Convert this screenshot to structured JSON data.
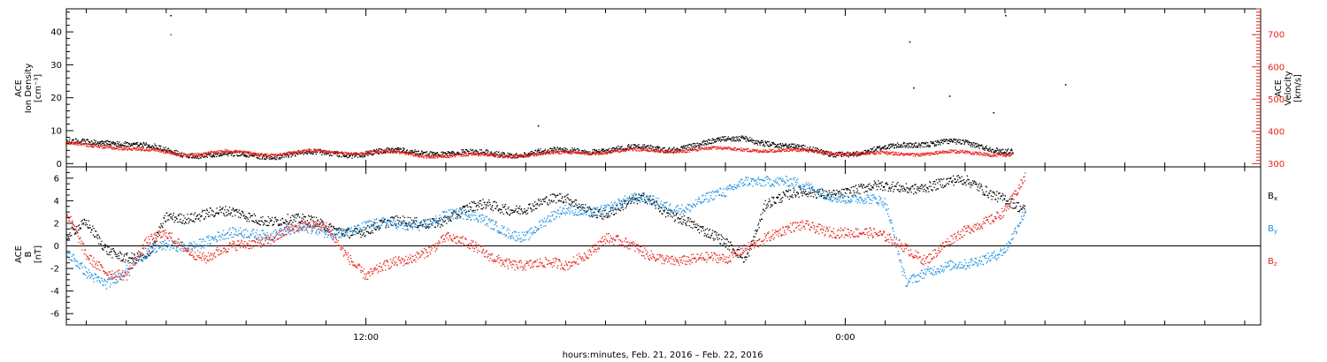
{
  "xlabel": "hours:minutes, Feb. 21, 2016 – Feb. 22, 2016",
  "x_ticks": [
    {
      "label": "12:00",
      "hour": 12
    },
    {
      "label": "0:00",
      "hour": 24
    }
  ],
  "colors": {
    "black": "#000000",
    "red": "#e8221c",
    "blue": "#1b8fe3"
  },
  "chart_data": [
    {
      "type": "scatter",
      "name": "top-panel",
      "xlim_hours": [
        4.5,
        34.4
      ],
      "left_axis": {
        "label_lines": [
          "ACE",
          "Ion Density",
          "[cm⁻³]"
        ],
        "ylim": [
          -1,
          47
        ],
        "ticks": [
          0,
          10,
          20,
          30,
          40
        ]
      },
      "right_axis": {
        "label_lines": [
          "ACE",
          "Velocity",
          "[km/s]"
        ],
        "ylim": [
          290,
          780
        ],
        "ticks": [
          300,
          400,
          500,
          600,
          700
        ]
      },
      "series": [
        {
          "name": "",
          "axis": "left",
          "color": "black",
          "hours": [
            4.5,
            5.5,
            6.5,
            7.5,
            8.5,
            9.5,
            10.5,
            11.5,
            12.5,
            13.5,
            14.5,
            15.5,
            16.5,
            17.5,
            18.5,
            19.5,
            20.5,
            21.5,
            22.5,
            23.5,
            24.5,
            25.5,
            26.5,
            27.5,
            28.2
          ],
          "values": [
            6,
            7,
            5,
            3,
            2.5,
            2.5,
            3,
            3,
            3.5,
            3.5,
            3,
            3,
            3.5,
            4,
            4.5,
            4.5,
            6,
            8,
            5,
            3.5,
            3,
            6,
            6.5,
            5,
            4
          ],
          "outliers": [
            [
              7.1,
              45
            ],
            [
              16.3,
              11.5
            ],
            [
              25.6,
              37
            ],
            [
              25.7,
              23
            ],
            [
              26.6,
              20.5
            ],
            [
              27.7,
              15.5
            ],
            [
              28.0,
              45
            ],
            [
              29.5,
              24
            ]
          ]
        },
        {
          "name": "",
          "axis": "right",
          "color": "red",
          "hours": [
            4.5,
            5.5,
            6.5,
            7.5,
            8.5,
            9.5,
            10.5,
            11.5,
            12.5,
            13.5,
            14.5,
            15.5,
            16.5,
            17.5,
            18.5,
            19.5,
            20.5,
            21.5,
            22.5,
            23.5,
            24.5,
            25.5,
            26.5,
            27.5,
            28.2
          ],
          "values": [
            360,
            355,
            340,
            330,
            335,
            330,
            335,
            335,
            335,
            325,
            325,
            325,
            330,
            335,
            340,
            340,
            345,
            345,
            340,
            335,
            330,
            330,
            335,
            330,
            330
          ],
          "outliers": [
            [
              7.1,
              780
            ],
            [
              7.1,
              700
            ]
          ]
        }
      ]
    },
    {
      "type": "scatter",
      "name": "bottom-panel",
      "xlim_hours": [
        4.5,
        34.4
      ],
      "left_axis": {
        "label_lines": [
          "ACE",
          "B",
          "[nT]"
        ],
        "ylim": [
          -7,
          7
        ],
        "ticks": [
          -6,
          -4,
          -2,
          0,
          2,
          4,
          6
        ]
      },
      "legend": [
        "Bx",
        "By",
        "Bz"
      ],
      "series": [
        {
          "name": "Bx",
          "color": "black",
          "hours": [
            4.5,
            5.0,
            5.5,
            6.0,
            6.5,
            7.0,
            8.0,
            9.0,
            10.0,
            11.0,
            12.0,
            13.0,
            14.0,
            15.0,
            16.0,
            17.0,
            18.0,
            19.0,
            20.0,
            20.5,
            21.0,
            21.5,
            22.0,
            23.0,
            24.0,
            25.0,
            26.0,
            27.0,
            28.0,
            28.5
          ],
          "values": [
            0.5,
            2,
            0,
            -1,
            -1.5,
            2.5,
            3,
            2.5,
            2.5,
            1.5,
            1.5,
            2,
            2.5,
            3.5,
            3.5,
            4,
            3,
            4,
            2.5,
            1,
            0,
            -1,
            4,
            4.5,
            5,
            5,
            5.5,
            5.5,
            4.5,
            3
          ]
        },
        {
          "name": "By",
          "color": "blue",
          "hours": [
            4.5,
            5.0,
            5.5,
            6.0,
            6.5,
            7.0,
            8.0,
            9.0,
            10.0,
            11.0,
            12.0,
            13.0,
            14.0,
            15.0,
            16.0,
            17.0,
            18.0,
            19.0,
            20.0,
            21.0,
            21.5,
            22.0,
            23.0,
            24.0,
            25.0,
            25.5,
            26.0,
            27.0,
            28.0,
            28.5
          ],
          "values": [
            -1,
            -2.5,
            -3,
            -2,
            -1,
            0,
            0.5,
            1,
            1.5,
            1,
            2,
            1.5,
            3,
            2,
            1,
            3,
            3.5,
            4,
            3.5,
            4.5,
            6,
            6,
            5,
            4.5,
            3.5,
            -3,
            -2,
            -2,
            0,
            3
          ]
        },
        {
          "name": "Bz",
          "color": "red",
          "hours": [
            4.5,
            5.0,
            5.5,
            6.0,
            6.5,
            7.0,
            8.0,
            9.0,
            10.0,
            11.0,
            12.0,
            13.0,
            14.0,
            15.0,
            16.0,
            17.0,
            18.0,
            19.0,
            20.0,
            21.0,
            21.5,
            22.0,
            23.0,
            24.0,
            25.0,
            25.5,
            26.0,
            27.0,
            28.0,
            28.5
          ],
          "values": [
            2.5,
            -1,
            -2,
            -2.5,
            0,
            1,
            -1,
            0,
            1.5,
            1.5,
            -2.5,
            -1.5,
            1,
            -1,
            -1.5,
            -2,
            1,
            -1,
            -1,
            -1.5,
            0,
            1,
            1.5,
            1.5,
            0.5,
            0,
            -1,
            1,
            3.5,
            6
          ]
        }
      ]
    }
  ]
}
